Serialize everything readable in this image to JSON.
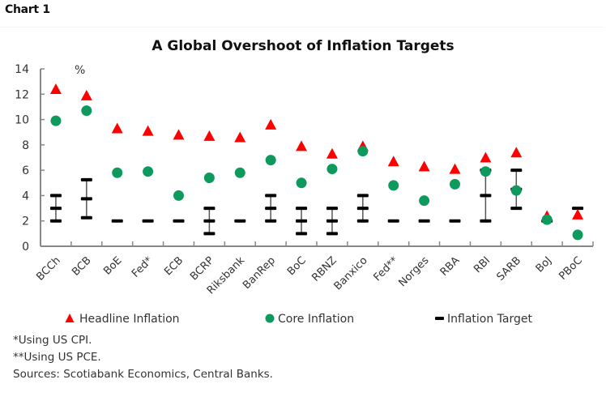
{
  "header": {
    "chart_label": "Chart 1"
  },
  "chart_data": {
    "type": "scatter",
    "title": "A Global Overshoot of Inflation Targets",
    "ylabel": "%",
    "xlabel": "",
    "ylim": [
      0,
      14
    ],
    "yticks": [
      0,
      2,
      4,
      6,
      8,
      10,
      12,
      14
    ],
    "grid": false,
    "legend_position": "bottom",
    "categories": [
      "BCCh",
      "BCB",
      "BoE",
      "Fed*",
      "ECB",
      "BCRP",
      "Riksbank",
      "BanRep",
      "BoC",
      "RBNZ",
      "Banxico",
      "Fed**",
      "Norges",
      "RBA",
      "RBI",
      "SARB",
      "BoJ",
      "PBoC"
    ],
    "series": [
      {
        "name": "Headline Inflation",
        "marker": "triangle",
        "color": "#ff0000",
        "values": [
          12.4,
          11.9,
          9.3,
          9.1,
          8.8,
          8.7,
          8.6,
          9.6,
          7.9,
          7.3,
          7.9,
          6.7,
          6.3,
          6.1,
          7.0,
          7.4,
          2.4,
          2.5
        ]
      },
      {
        "name": "Core Inflation",
        "marker": "circle",
        "color": "#0e9a5c",
        "values": [
          9.9,
          10.7,
          5.8,
          5.9,
          4.0,
          5.4,
          5.8,
          6.8,
          5.0,
          6.1,
          7.5,
          4.8,
          3.6,
          4.9,
          5.9,
          4.4,
          2.1,
          0.9
        ]
      },
      {
        "name": "Inflation Target",
        "marker": "dash",
        "color": "#000000",
        "point": [
          3,
          3.75,
          2,
          2,
          2,
          2,
          2,
          3,
          2,
          2,
          3,
          2,
          2,
          2,
          4,
          4.5,
          2,
          3
        ],
        "low": [
          2,
          2.25,
          null,
          null,
          null,
          1,
          null,
          2,
          1,
          1,
          2,
          null,
          null,
          null,
          2,
          3,
          null,
          null
        ],
        "high": [
          4,
          5.25,
          null,
          null,
          null,
          3,
          null,
          4,
          3,
          3,
          4,
          null,
          null,
          null,
          6,
          6,
          null,
          null
        ]
      }
    ],
    "legend": [
      "Headline Inflation",
      "Core Inflation",
      "Inflation Target"
    ]
  },
  "notes": {
    "note1": "*Using US CPI.",
    "note2": "**Using US PCE.",
    "sources": "Sources: Scotiabank Economics, Central Banks."
  }
}
